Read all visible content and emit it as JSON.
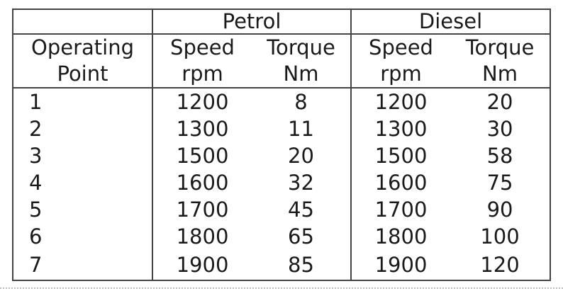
{
  "table": {
    "header": {
      "group_petrol": "Petrol",
      "group_diesel": "Diesel",
      "operating_line1": "Operating",
      "operating_line2": "Point",
      "petrol_speed_line1": "Speed",
      "petrol_speed_line2": "rpm",
      "petrol_torque_line1": "Torque",
      "petrol_torque_line2": "Nm",
      "diesel_speed_line1": "Speed",
      "diesel_speed_line2": "rpm",
      "diesel_torque_line1": "Torque",
      "diesel_torque_line2": "Nm"
    },
    "rows": [
      {
        "point": "1",
        "petrol_speed": "1200",
        "petrol_torque": "8",
        "diesel_speed": "1200",
        "diesel_torque": "20"
      },
      {
        "point": "2",
        "petrol_speed": "1300",
        "petrol_torque": "11",
        "diesel_speed": "1300",
        "diesel_torque": "30"
      },
      {
        "point": "3",
        "petrol_speed": "1500",
        "petrol_torque": "20",
        "diesel_speed": "1500",
        "diesel_torque": "58"
      },
      {
        "point": "4",
        "petrol_speed": "1600",
        "petrol_torque": "32",
        "diesel_speed": "1600",
        "diesel_torque": "75"
      },
      {
        "point": "5",
        "petrol_speed": "1700",
        "petrol_torque": "45",
        "diesel_speed": "1700",
        "diesel_torque": "90"
      },
      {
        "point": "6",
        "petrol_speed": "1800",
        "petrol_torque": "65",
        "diesel_speed": "1800",
        "diesel_torque": "100"
      },
      {
        "point": "7",
        "petrol_speed": "1900",
        "petrol_torque": "85",
        "diesel_speed": "1900",
        "diesel_torque": "120"
      }
    ]
  }
}
